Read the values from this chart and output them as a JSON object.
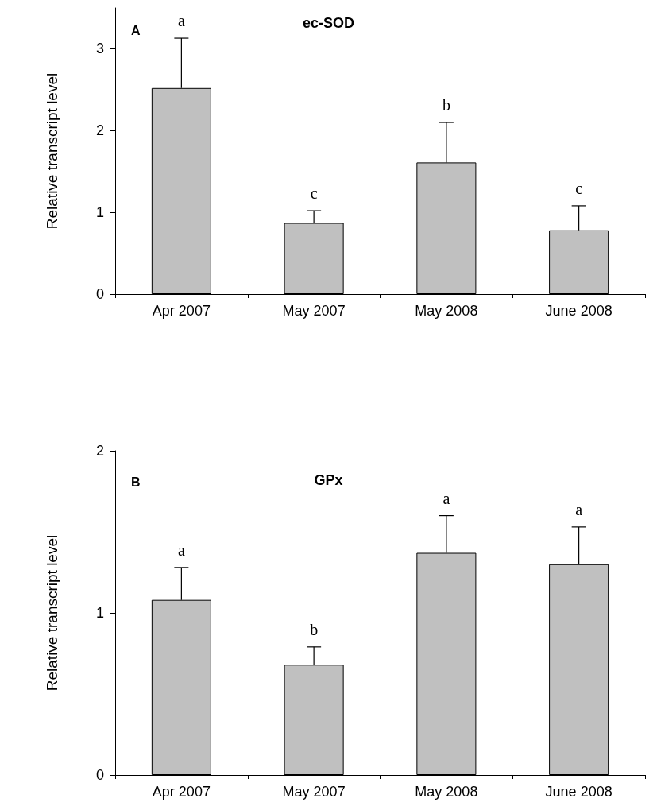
{
  "chart_data": [
    {
      "type": "bar",
      "title": "ec-SOD",
      "ylabel": "Relative transcript level",
      "categories": [
        "Apr 2007",
        "May 2007",
        "May 2008",
        "June 2008"
      ],
      "values": [
        2.52,
        0.87,
        1.61,
        0.78
      ],
      "color": "#c0c0c0",
      "errors": [
        [
          2.52,
          3.13
        ],
        [
          0.87,
          1.02
        ],
        [
          1.61,
          2.1
        ],
        [
          0.78,
          1.08
        ]
      ],
      "ylim": [
        0,
        3.5
      ],
      "yticks": [
        0,
        1,
        2,
        3
      ],
      "grid": false,
      "annotations": [
        "A",
        {
          "text": "a",
          "x": "Apr 2007",
          "y": 3.13
        },
        {
          "text": "c",
          "x": "May 2007",
          "y": 1.02
        },
        {
          "text": "b",
          "x": "May 2008",
          "y": 2.1
        },
        {
          "text": "c",
          "x": "June 2008",
          "y": 1.08
        }
      ]
    },
    {
      "type": "bar",
      "title": "GPx",
      "ylabel": "Relative transcript level",
      "categories": [
        "Apr 2007",
        "May 2007",
        "May 2008",
        "June 2008"
      ],
      "values": [
        1.08,
        0.68,
        1.37,
        1.3
      ],
      "color": "#c0c0c0",
      "errors": [
        [
          1.08,
          1.28
        ],
        [
          0.68,
          0.79
        ],
        [
          1.37,
          1.6
        ],
        [
          1.3,
          1.53
        ]
      ],
      "ylim": [
        0,
        2
      ],
      "yticks": [
        0,
        1,
        2
      ],
      "grid": false,
      "annotations": [
        "B",
        {
          "text": "a",
          "x": "Apr 2007",
          "y": 1.28
        },
        {
          "text": "b",
          "x": "May 2007",
          "y": 0.79
        },
        {
          "text": "a",
          "x": "May 2008",
          "y": 1.6
        },
        {
          "text": "a",
          "x": "June 2008",
          "y": 1.53
        }
      ]
    }
  ]
}
